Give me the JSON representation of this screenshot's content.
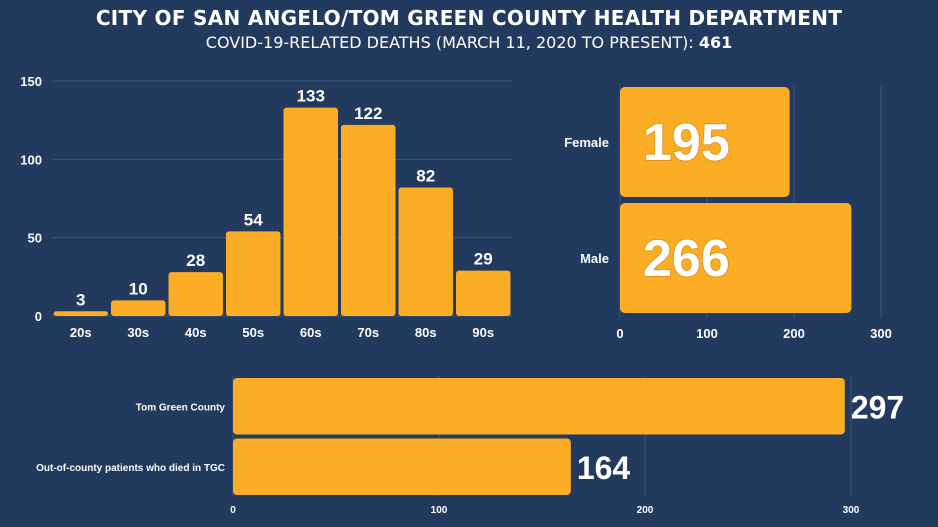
{
  "header": {
    "title": "CITY OF SAN ANGELO/TOM GREEN COUNTY HEALTH DEPARTMENT",
    "subtitle": "COVID-19-RELATED DEATHS (MARCH 11, 2020 TO PRESENT):",
    "total": "461"
  },
  "colors": {
    "background": "#223a5e",
    "bar": "#fbad26",
    "grid": "#3f5578",
    "text": "#ffffff"
  },
  "chart_data": [
    {
      "type": "bar",
      "orientation": "vertical",
      "categories": [
        "20s",
        "30s",
        "40s",
        "50s",
        "60s",
        "70s",
        "80s",
        "90s"
      ],
      "values": [
        3,
        10,
        28,
        54,
        133,
        122,
        82,
        29
      ],
      "yticks": [
        0,
        50,
        100,
        150
      ],
      "ylim": [
        0,
        150
      ],
      "grid": true,
      "data_labels": true
    },
    {
      "type": "bar",
      "orientation": "horizontal",
      "categories": [
        "Female",
        "Male"
      ],
      "values": [
        195,
        266
      ],
      "xticks": [
        0,
        100,
        200,
        300
      ],
      "xlim": [
        0,
        300
      ],
      "grid": true,
      "data_labels": true
    },
    {
      "type": "bar",
      "orientation": "horizontal",
      "categories": [
        "Tom Green County",
        "Out-of-county patients who died in TGC"
      ],
      "values": [
        297,
        164
      ],
      "xticks": [
        0,
        100,
        200,
        300
      ],
      "xlim": [
        0,
        300
      ],
      "grid": true,
      "data_labels": true
    }
  ]
}
